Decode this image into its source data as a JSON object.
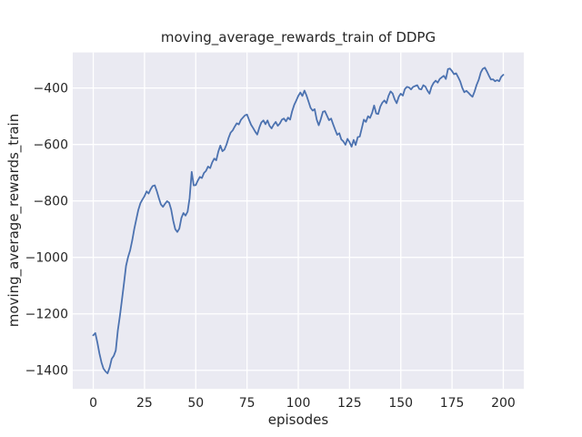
{
  "chart_data": {
    "type": "line",
    "title": "moving_average_rewards_train of DDPG",
    "xlabel": "episodes",
    "ylabel": "moving_average_rewards_train",
    "x_ticks": [
      0,
      25,
      50,
      75,
      100,
      125,
      150,
      175,
      200
    ],
    "y_ticks": [
      -400,
      -600,
      -800,
      -1000,
      -1200,
      -1400
    ],
    "xlim": [
      -10,
      210
    ],
    "ylim": [
      -1466,
      -274
    ],
    "grid": true,
    "legend": "none",
    "style": {
      "figure_background": "#FFFFFF",
      "plot_background": "#EAEAF2",
      "grid_color": "#FFFFFF",
      "line_color": "#4C72B0",
      "text_color": "#262626"
    },
    "series": [
      {
        "name": "moving_average_rewards_train",
        "x_start": 0,
        "x_step": 1,
        "values": [
          -1276,
          -1268,
          -1302,
          -1340,
          -1372,
          -1394,
          -1404,
          -1411,
          -1390,
          -1360,
          -1349,
          -1330,
          -1258,
          -1206,
          -1150,
          -1090,
          -1030,
          -998,
          -975,
          -940,
          -900,
          -865,
          -832,
          -808,
          -795,
          -783,
          -766,
          -774,
          -758,
          -747,
          -745,
          -765,
          -790,
          -812,
          -821,
          -810,
          -801,
          -806,
          -830,
          -870,
          -900,
          -910,
          -898,
          -860,
          -843,
          -852,
          -838,
          -790,
          -697,
          -745,
          -744,
          -728,
          -715,
          -719,
          -701,
          -694,
          -678,
          -684,
          -664,
          -650,
          -656,
          -625,
          -604,
          -624,
          -618,
          -600,
          -577,
          -558,
          -550,
          -537,
          -525,
          -529,
          -513,
          -505,
          -497,
          -494,
          -513,
          -530,
          -542,
          -555,
          -565,
          -540,
          -522,
          -515,
          -528,
          -515,
          -534,
          -543,
          -530,
          -520,
          -534,
          -526,
          -512,
          -508,
          -518,
          -505,
          -512,
          -483,
          -460,
          -445,
          -428,
          -416,
          -428,
          -409,
          -426,
          -448,
          -470,
          -480,
          -475,
          -512,
          -532,
          -510,
          -484,
          -482,
          -498,
          -514,
          -508,
          -528,
          -548,
          -566,
          -560,
          -582,
          -589,
          -601,
          -580,
          -592,
          -608,
          -584,
          -602,
          -574,
          -572,
          -542,
          -512,
          -520,
          -500,
          -506,
          -488,
          -462,
          -490,
          -492,
          -466,
          -452,
          -444,
          -454,
          -428,
          -412,
          -419,
          -440,
          -454,
          -431,
          -420,
          -427,
          -404,
          -396,
          -398,
          -405,
          -396,
          -393,
          -390,
          -403,
          -405,
          -390,
          -395,
          -409,
          -420,
          -396,
          -382,
          -374,
          -381,
          -368,
          -362,
          -357,
          -368,
          -333,
          -331,
          -340,
          -351,
          -348,
          -362,
          -377,
          -400,
          -415,
          -410,
          -417,
          -425,
          -431,
          -412,
          -389,
          -371,
          -345,
          -332,
          -328,
          -341,
          -357,
          -370,
          -369,
          -376,
          -372,
          -376,
          -360,
          -353
        ]
      }
    ]
  }
}
